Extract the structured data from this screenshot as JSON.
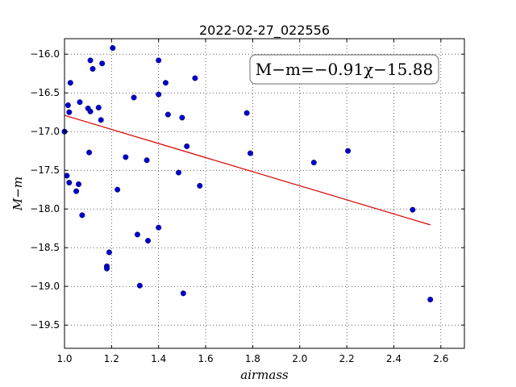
{
  "chart_data": {
    "type": "scatter",
    "title": "2022-02-27_022556",
    "xlabel": "airmass",
    "ylabel": "M−m",
    "xlim": [
      1.0,
      2.7
    ],
    "ylim": [
      -19.8,
      -15.8
    ],
    "y_inverted": true,
    "grid": true,
    "xticks": [
      1.0,
      1.2,
      1.4,
      1.6,
      1.8,
      2.0,
      2.2,
      2.4,
      2.6
    ],
    "xtick_labels": [
      "1.0",
      "1.2",
      "1.4",
      "1.6",
      "1.8",
      "2.0",
      "2.2",
      "2.4",
      "2.6"
    ],
    "yticks": [
      -16.0,
      -16.5,
      -17.0,
      -17.5,
      -18.0,
      -18.5,
      -19.0,
      -19.5
    ],
    "ytick_labels": [
      "−16.0",
      "−16.5",
      "−17.0",
      "−17.5",
      "−18.0",
      "−18.5",
      "−19.0",
      "−19.5"
    ],
    "annotation": "M−m=−0.91χ−15.88",
    "points_color": "#0000cc",
    "fit_color": "#dd0000",
    "series": [
      {
        "type": "scatter",
        "points": [
          [
            1.0,
            -17.0
          ],
          [
            1.01,
            -17.57
          ],
          [
            1.015,
            -16.66
          ],
          [
            1.02,
            -16.75
          ],
          [
            1.02,
            -17.66
          ],
          [
            1.025,
            -16.37
          ],
          [
            1.05,
            -17.77
          ],
          [
            1.06,
            -17.68
          ],
          [
            1.065,
            -16.62
          ],
          [
            1.075,
            -18.08
          ],
          [
            1.1,
            -16.7
          ],
          [
            1.105,
            -17.27
          ],
          [
            1.11,
            -16.74
          ],
          [
            1.11,
            -16.08
          ],
          [
            1.12,
            -16.19
          ],
          [
            1.145,
            -16.69
          ],
          [
            1.155,
            -16.85
          ],
          [
            1.16,
            -16.12
          ],
          [
            1.18,
            -18.74
          ],
          [
            1.18,
            -18.77
          ],
          [
            1.19,
            -18.56
          ],
          [
            1.205,
            -15.92
          ],
          [
            1.225,
            -17.75
          ],
          [
            1.26,
            -17.33
          ],
          [
            1.295,
            -16.56
          ],
          [
            1.31,
            -18.33
          ],
          [
            1.32,
            -18.99
          ],
          [
            1.35,
            -17.37
          ],
          [
            1.355,
            -18.41
          ],
          [
            1.4,
            -16.08
          ],
          [
            1.4,
            -16.52
          ],
          [
            1.4,
            -18.24
          ],
          [
            1.43,
            -16.37
          ],
          [
            1.44,
            -16.78
          ],
          [
            1.485,
            -17.53
          ],
          [
            1.5,
            -16.82
          ],
          [
            1.505,
            -19.09
          ],
          [
            1.52,
            -17.19
          ],
          [
            1.555,
            -16.31
          ],
          [
            1.575,
            -17.7
          ],
          [
            1.775,
            -16.76
          ],
          [
            1.79,
            -17.28
          ],
          [
            2.06,
            -17.4
          ],
          [
            2.205,
            -17.25
          ],
          [
            2.48,
            -18.01
          ],
          [
            2.555,
            -19.17
          ]
        ]
      },
      {
        "type": "line",
        "slope": -0.91,
        "intercept": -15.88,
        "x": [
          1.0,
          2.555
        ]
      }
    ]
  }
}
